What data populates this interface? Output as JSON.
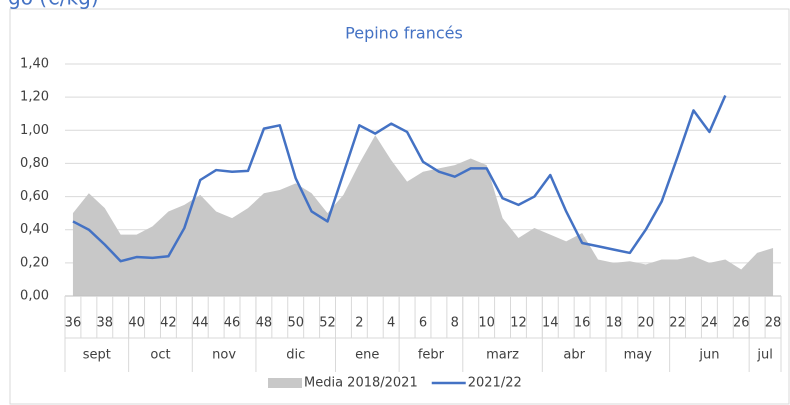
{
  "header_text": "go (€/kg)",
  "chart_data": {
    "type": "area-line",
    "title": "Pepino francés",
    "categories": [
      "36",
      null,
      "38",
      null,
      "40",
      null,
      "42",
      null,
      "44",
      null,
      "46",
      null,
      "48",
      null,
      "50",
      null,
      "52",
      null,
      "2",
      null,
      "4",
      null,
      "6",
      null,
      "8",
      null,
      "10",
      null,
      "12",
      null,
      "14",
      null,
      "16",
      null,
      "18",
      null,
      "20",
      null,
      "22",
      null,
      "24",
      null,
      "26",
      null,
      "28"
    ],
    "month_labels": [
      "sept",
      "oct",
      "nov",
      "dic",
      "ene",
      "febr",
      "marz",
      "abr",
      "may",
      "jun",
      "jul"
    ],
    "series": [
      {
        "name": "Media 2018/2021",
        "kind": "area",
        "color": "#c8c8c8",
        "values": [
          0.5,
          0.62,
          0.53,
          0.37,
          0.37,
          0.42,
          0.51,
          0.55,
          0.61,
          0.51,
          0.47,
          0.53,
          0.62,
          0.64,
          0.68,
          0.62,
          0.5,
          0.61,
          0.8,
          0.97,
          0.82,
          0.69,
          0.75,
          0.77,
          0.79,
          0.83,
          0.79,
          0.47,
          0.35,
          0.41,
          0.37,
          0.33,
          0.38,
          0.22,
          0.2,
          0.21,
          0.19,
          0.22,
          0.22,
          0.24,
          0.2,
          0.22,
          0.16,
          0.26,
          0.29
        ]
      },
      {
        "name": "2021/22",
        "kind": "line",
        "color": "#4472c4",
        "values": [
          0.45,
          0.4,
          0.31,
          0.21,
          0.235,
          0.23,
          0.24,
          0.41,
          0.7,
          0.76,
          0.75,
          0.755,
          1.01,
          1.03,
          0.71,
          0.51,
          0.45,
          0.74,
          1.03,
          0.98,
          1.04,
          0.99,
          0.81,
          0.75,
          0.72,
          0.77,
          0.77,
          0.59,
          0.55,
          0.6,
          0.73,
          0.51,
          0.32,
          0.3,
          0.28,
          0.26,
          0.4,
          0.57,
          0.84,
          1.12,
          0.99,
          1.21,
          null,
          null,
          null
        ]
      }
    ],
    "ylim": [
      0,
      1.4
    ],
    "yticks": [
      {
        "value": 0,
        "label": "0,00"
      },
      {
        "value": 0.2,
        "label": "0,20"
      },
      {
        "value": 0.4,
        "label": "0,40"
      },
      {
        "value": 0.6,
        "label": "0,60"
      },
      {
        "value": 0.8,
        "label": "0,80"
      },
      {
        "value": 1.0,
        "label": "1,00"
      },
      {
        "value": 1.2,
        "label": "1,20"
      },
      {
        "value": 1.4,
        "label": "1,40"
      }
    ],
    "grid": true,
    "legend": "bottom"
  }
}
